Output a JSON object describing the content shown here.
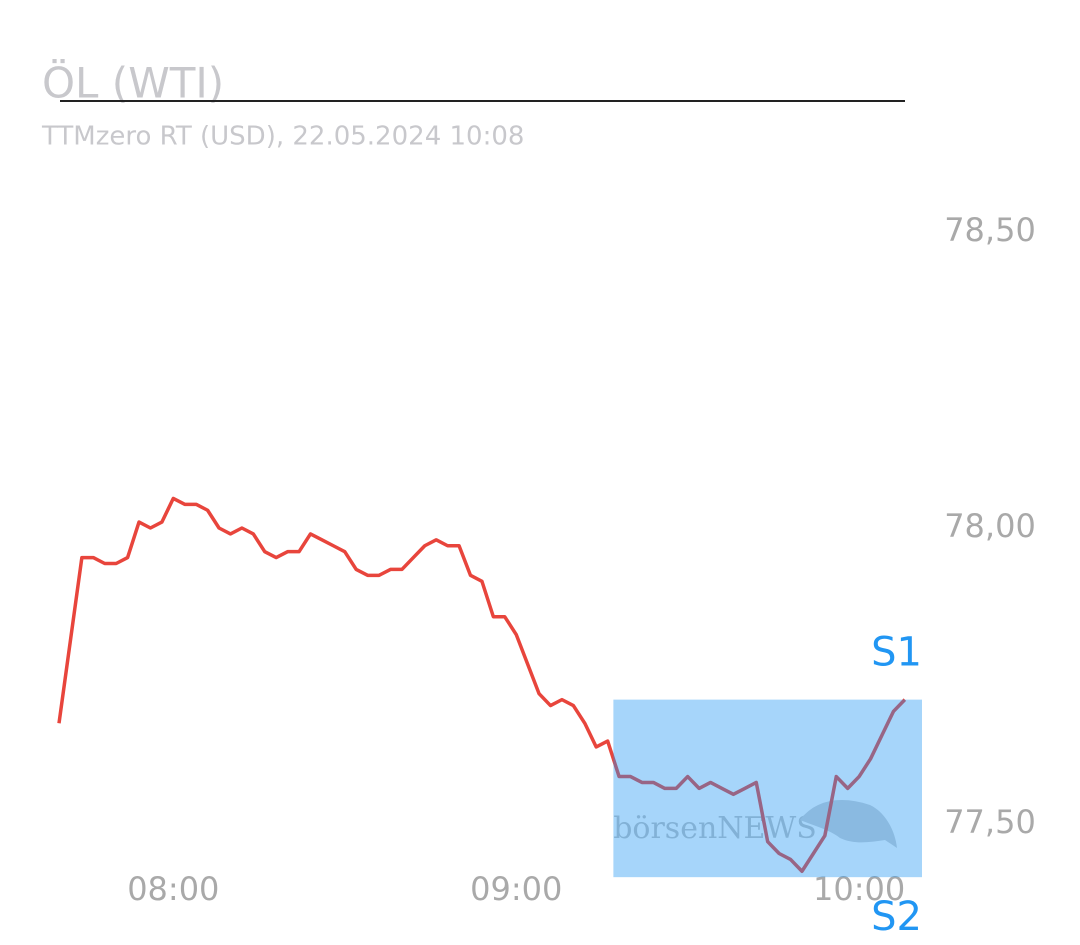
{
  "chart_data": {
    "type": "line",
    "title": "ÖL (WTI)",
    "subtitle": "TTMzero RT (USD), 22.05.2024 10:08",
    "watermark": "börsenNEWS",
    "x": [
      "07:40",
      "07:44",
      "07:46",
      "07:48",
      "07:50",
      "07:52",
      "07:54",
      "07:56",
      "07:58",
      "08:00",
      "08:02",
      "08:04",
      "08:06",
      "08:08",
      "08:10",
      "08:12",
      "08:14",
      "08:16",
      "08:18",
      "08:20",
      "08:22",
      "08:24",
      "08:26",
      "08:28",
      "08:30",
      "08:32",
      "08:34",
      "08:36",
      "08:38",
      "08:40",
      "08:42",
      "08:44",
      "08:46",
      "08:48",
      "08:50",
      "08:52",
      "08:54",
      "08:56",
      "08:58",
      "09:00",
      "09:02",
      "09:04",
      "09:06",
      "09:08",
      "09:10",
      "09:12",
      "09:14",
      "09:16",
      "09:18",
      "09:20",
      "09:22",
      "09:24",
      "09:26",
      "09:28",
      "09:30",
      "09:32",
      "09:34",
      "09:36",
      "09:38",
      "09:40",
      "09:42",
      "09:44",
      "09:46",
      "09:48",
      "09:50",
      "09:52",
      "09:54",
      "09:56",
      "09:58",
      "10:00",
      "10:02",
      "10:04",
      "10:06",
      "10:08"
    ],
    "series": [
      {
        "color": "#e8453c",
        "values": [
          77.67,
          77.95,
          77.95,
          77.94,
          77.94,
          77.95,
          78.01,
          78.0,
          78.01,
          78.05,
          78.04,
          78.04,
          78.03,
          78.0,
          77.99,
          78.0,
          77.99,
          77.96,
          77.95,
          77.96,
          77.96,
          77.99,
          77.98,
          77.97,
          77.96,
          77.93,
          77.92,
          77.92,
          77.93,
          77.93,
          77.95,
          77.97,
          77.98,
          77.97,
          77.97,
          77.92,
          77.91,
          77.85,
          77.85,
          77.82,
          77.77,
          77.72,
          77.7,
          77.71,
          77.7,
          77.67,
          77.63,
          77.64,
          77.58,
          77.58,
          77.57,
          77.57,
          77.56,
          77.56,
          77.58,
          77.56,
          77.57,
          77.56,
          77.55,
          77.56,
          77.57,
          77.47,
          77.45,
          77.44,
          77.42,
          77.45,
          77.48,
          77.58,
          77.56,
          77.58,
          77.61,
          77.65,
          77.69,
          77.71
        ]
      }
    ],
    "zone": {
      "start": "09:17",
      "color": "#2196f3",
      "levels": [
        {
          "label": "S1",
          "value": 77.71
        },
        {
          "label": "S2",
          "value": 77.41
        }
      ]
    },
    "xlim": [
      "07:40",
      "10:11"
    ],
    "xticks": [
      "08:00",
      "09:00",
      "10:00"
    ],
    "ylim": [
      77.39,
      78.61
    ],
    "yticks": [
      {
        "value": 77.5,
        "label": "77,50"
      },
      {
        "value": 78.0,
        "label": "78,00"
      },
      {
        "value": 78.5,
        "label": "78,50"
      }
    ]
  }
}
